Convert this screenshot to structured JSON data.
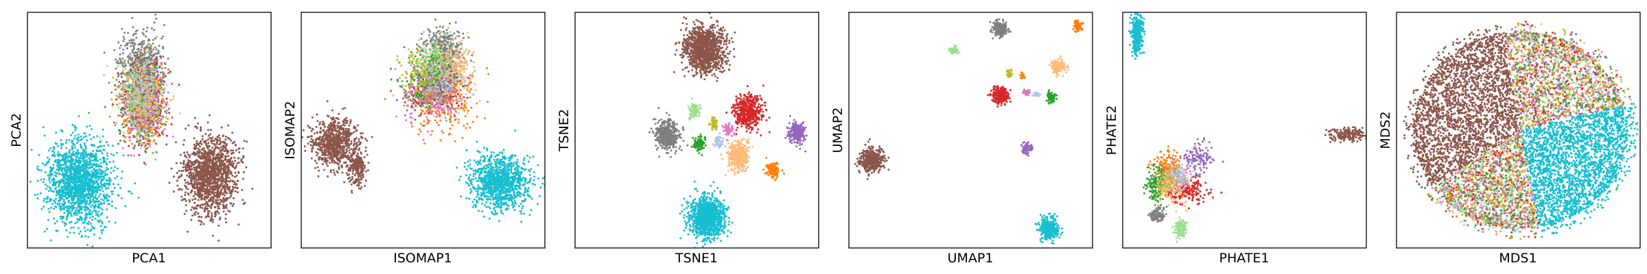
{
  "figure": {
    "panels": [
      {
        "id": "pca",
        "xlabel": "PCA1",
        "ylabel": "PCA2"
      },
      {
        "id": "isomap",
        "xlabel": "ISOMAP1",
        "ylabel": "ISOMAP2"
      },
      {
        "id": "tsne",
        "xlabel": "TSNE1",
        "ylabel": "TSNE2"
      },
      {
        "id": "umap",
        "xlabel": "UMAP1",
        "ylabel": "UMAP2"
      },
      {
        "id": "phate",
        "xlabel": "PHATE1",
        "ylabel": "PHATE2"
      },
      {
        "id": "mds",
        "xlabel": "MDS1",
        "ylabel": "MDS2"
      }
    ],
    "palette": {
      "orange": "#ff7f0e",
      "green": "#2ca02c",
      "red": "#d62728",
      "purple": "#9467bd",
      "brown": "#8c564b",
      "pink": "#e377c2",
      "gray": "#7f7f7f",
      "olive": "#bcbd22",
      "cyan": "#17becf",
      "lightgreen": "#98df8a",
      "lightorange": "#ffbb78",
      "lightblue": "#aec7e8",
      "blue": "#1f77b4"
    }
  },
  "chart_data": [
    {
      "type": "scatter",
      "xlabel": "PCA1",
      "ylabel": "PCA2",
      "xlim": [
        0,
        100
      ],
      "ylim": [
        0,
        100
      ],
      "ticks": "none",
      "grid": false,
      "clusters": [
        {
          "color": "cyan",
          "center": [
            21,
            28
          ],
          "spread": [
            6.5,
            9
          ],
          "n": 1600
        },
        {
          "color": "brown",
          "center": [
            75,
            31
          ],
          "spread": [
            5.5,
            8
          ],
          "n": 1400
        },
        {
          "color": "gray",
          "center": [
            47,
            75
          ],
          "spread": [
            4.5,
            8
          ],
          "n": 700
        },
        {
          "color": "red",
          "center": [
            48,
            61
          ],
          "spread": [
            4.5,
            8
          ],
          "n": 320
        },
        {
          "color": "orange",
          "center": [
            47,
            58
          ],
          "spread": [
            4.5,
            8
          ],
          "n": 200
        },
        {
          "color": "green",
          "center": [
            47,
            58
          ],
          "spread": [
            4.5,
            8
          ],
          "n": 200
        },
        {
          "color": "purple",
          "center": [
            48,
            60
          ],
          "spread": [
            4.5,
            8
          ],
          "n": 200
        },
        {
          "color": "pink",
          "center": [
            48,
            58
          ],
          "spread": [
            4.5,
            8
          ],
          "n": 140
        },
        {
          "color": "olive",
          "center": [
            47,
            62
          ],
          "spread": [
            4.5,
            8
          ],
          "n": 140
        },
        {
          "color": "lightgreen",
          "center": [
            46,
            66
          ],
          "spread": [
            4.5,
            8
          ],
          "n": 140
        },
        {
          "color": "lightorange",
          "center": [
            49,
            64
          ],
          "spread": [
            4.5,
            8
          ],
          "n": 140
        },
        {
          "color": "lightblue",
          "center": [
            47,
            64
          ],
          "spread": [
            4.5,
            8
          ],
          "n": 120
        }
      ]
    },
    {
      "type": "scatter",
      "xlabel": "ISOMAP1",
      "ylabel": "ISOMAP2",
      "xlim": [
        0,
        100
      ],
      "ylim": [
        0,
        100
      ],
      "ticks": "none",
      "grid": false,
      "clusters": [
        {
          "color": "brown",
          "center": [
            14,
            45
          ],
          "spread": [
            4.5,
            5
          ],
          "n": 800
        },
        {
          "color": "brown",
          "center": [
            23,
            34
          ],
          "spread": [
            2,
            4
          ],
          "n": 200
        },
        {
          "color": "cyan",
          "center": [
            82,
            28
          ],
          "spread": [
            6,
            5.5
          ],
          "n": 1100
        },
        {
          "color": "gray",
          "center": [
            58,
            83
          ],
          "spread": [
            4,
            5
          ],
          "n": 450
        },
        {
          "color": "lightgreen",
          "center": [
            55,
            78
          ],
          "spread": [
            4.5,
            6
          ],
          "n": 260
        },
        {
          "color": "lightorange",
          "center": [
            63,
            74
          ],
          "spread": [
            4,
            7
          ],
          "n": 260
        },
        {
          "color": "red",
          "center": [
            55,
            66
          ],
          "spread": [
            5,
            4
          ],
          "n": 260
        },
        {
          "color": "purple",
          "center": [
            53,
            67
          ],
          "spread": [
            5,
            4
          ],
          "n": 220
        },
        {
          "color": "orange",
          "center": [
            58,
            62
          ],
          "spread": [
            7,
            8
          ],
          "n": 220
        },
        {
          "color": "green",
          "center": [
            52,
            70
          ],
          "spread": [
            6,
            6
          ],
          "n": 180
        },
        {
          "color": "pink",
          "center": [
            54,
            64
          ],
          "spread": [
            6,
            6
          ],
          "n": 160
        },
        {
          "color": "olive",
          "center": [
            50,
            72
          ],
          "spread": [
            5,
            5
          ],
          "n": 140
        },
        {
          "color": "lightblue",
          "center": [
            58,
            70
          ],
          "spread": [
            5,
            5
          ],
          "n": 120
        }
      ]
    },
    {
      "type": "scatter",
      "xlabel": "TSNE1",
      "ylabel": "TSNE2",
      "xlim": [
        0,
        100
      ],
      "ylim": [
        0,
        100
      ],
      "ticks": "none",
      "grid": false,
      "clusters": [
        {
          "color": "brown",
          "center": [
            53,
            84
          ],
          "spread": [
            4.2,
            4.8
          ],
          "n": 1200
        },
        {
          "color": "cyan",
          "center": [
            54,
            13
          ],
          "spread": [
            3.6,
            4.3
          ],
          "n": 1100
        },
        {
          "color": "red",
          "center": [
            71,
            58
          ],
          "spread": [
            2.8,
            3.5
          ],
          "n": 500
        },
        {
          "color": "gray",
          "center": [
            38,
            48
          ],
          "spread": [
            2.5,
            3
          ],
          "n": 420
        },
        {
          "color": "lightorange",
          "center": [
            67,
            39
          ],
          "spread": [
            2.2,
            3
          ],
          "n": 360
        },
        {
          "color": "purple",
          "center": [
            91,
            49
          ],
          "spread": [
            1.8,
            2.2
          ],
          "n": 220
        },
        {
          "color": "orange",
          "center": [
            81,
            33
          ],
          "spread": [
            1.3,
            1.8
          ],
          "n": 140
        },
        {
          "color": "green",
          "center": [
            51,
            44
          ],
          "spread": [
            1.2,
            1.6
          ],
          "n": 120
        },
        {
          "color": "lightgreen",
          "center": [
            49,
            58
          ],
          "spread": [
            1.2,
            1.6
          ],
          "n": 90
        },
        {
          "color": "olive",
          "center": [
            57,
            53
          ],
          "spread": [
            0.8,
            1.2
          ],
          "n": 50
        },
        {
          "color": "pink",
          "center": [
            63,
            50
          ],
          "spread": [
            1,
            1.3
          ],
          "n": 60
        },
        {
          "color": "lightblue",
          "center": [
            59,
            45
          ],
          "spread": [
            1,
            1.3
          ],
          "n": 60
        }
      ]
    },
    {
      "type": "scatter",
      "xlabel": "UMAP1",
      "ylabel": "UMAP2",
      "xlim": [
        0,
        100
      ],
      "ylim": [
        0,
        100
      ],
      "ticks": "none",
      "grid": false,
      "clusters": [
        {
          "color": "gray",
          "center": [
            62,
            93
          ],
          "spread": [
            1.4,
            1.6
          ],
          "n": 250
        },
        {
          "color": "orange",
          "center": [
            94,
            94
          ],
          "spread": [
            0.8,
            1
          ],
          "n": 90
        },
        {
          "color": "lightgreen",
          "center": [
            43,
            84
          ],
          "spread": [
            0.9,
            0.7
          ],
          "n": 70
        },
        {
          "color": "lightorange",
          "center": [
            86,
            77
          ],
          "spread": [
            1.5,
            1.4
          ],
          "n": 160
        },
        {
          "color": "olive",
          "center": [
            66,
            74
          ],
          "spread": [
            0.6,
            0.8
          ],
          "n": 40
        },
        {
          "color": "orange",
          "center": [
            71,
            73
          ],
          "spread": [
            0.5,
            0.6
          ],
          "n": 25
        },
        {
          "color": "red",
          "center": [
            62,
            65
          ],
          "spread": [
            1.7,
            1.6
          ],
          "n": 230
        },
        {
          "color": "pink",
          "center": [
            73,
            66
          ],
          "spread": [
            0.7,
            0.6
          ],
          "n": 35
        },
        {
          "color": "lightblue",
          "center": [
            77,
            65
          ],
          "spread": [
            0.6,
            0.5
          ],
          "n": 30
        },
        {
          "color": "green",
          "center": [
            83,
            64
          ],
          "spread": [
            0.8,
            1.2
          ],
          "n": 70
        },
        {
          "color": "purple",
          "center": [
            73,
            42
          ],
          "spread": [
            1,
            1.1
          ],
          "n": 70
        },
        {
          "color": "brown",
          "center": [
            9,
            37
          ],
          "spread": [
            2.3,
            2.5
          ],
          "n": 450
        },
        {
          "color": "cyan",
          "center": [
            82,
            8
          ],
          "spread": [
            1.9,
            2.2
          ],
          "n": 380
        }
      ]
    },
    {
      "type": "scatter",
      "xlabel": "PHATE1",
      "ylabel": "PHATE2",
      "xlim": [
        0,
        100
      ],
      "ylim": [
        0,
        100
      ],
      "ticks": "none",
      "grid": false,
      "clusters": [
        {
          "color": "cyan",
          "center": [
            6,
            91
          ],
          "spread": [
            1.2,
            5
          ],
          "n": 300
        },
        {
          "color": "brown",
          "center": [
            92,
            48
          ],
          "spread": [
            3.5,
            1.4
          ],
          "n": 200
        },
        {
          "color": "orange",
          "center": [
            18,
            35
          ],
          "spread": [
            3,
            3
          ],
          "n": 150
        },
        {
          "color": "green",
          "center": [
            14,
            27
          ],
          "spread": [
            2,
            3.5
          ],
          "n": 180
        },
        {
          "color": "red",
          "center": [
            26,
            24
          ],
          "spread": [
            4.5,
            2.5
          ],
          "n": 180
        },
        {
          "color": "purple",
          "center": [
            31,
            39
          ],
          "spread": [
            3,
            3.5
          ],
          "n": 120
        },
        {
          "color": "lightorange",
          "center": [
            20,
            26
          ],
          "spread": [
            3,
            4
          ],
          "n": 150
        },
        {
          "color": "lightgreen",
          "center": [
            24,
            8
          ],
          "spread": [
            1.3,
            1.8
          ],
          "n": 110
        },
        {
          "color": "gray",
          "center": [
            14,
            14
          ],
          "spread": [
            1.4,
            1.6
          ],
          "n": 110
        },
        {
          "color": "pink",
          "center": [
            22,
            30
          ],
          "spread": [
            3,
            3
          ],
          "n": 80
        },
        {
          "color": "olive",
          "center": [
            19,
            29
          ],
          "spread": [
            2.5,
            3
          ],
          "n": 70
        },
        {
          "color": "lightblue",
          "center": [
            24,
            31
          ],
          "spread": [
            3,
            3
          ],
          "n": 70
        }
      ]
    },
    {
      "type": "scatter",
      "xlabel": "MDS1",
      "ylabel": "MDS2",
      "xlim": [
        0,
        100
      ],
      "ylim": [
        0,
        100
      ],
      "ticks": "none",
      "grid": false,
      "disk": {
        "center": [
          51,
          50
        ],
        "radius_x": 44,
        "radius_y": 42
      },
      "sectors": [
        {
          "color": "brown",
          "angle_range": [
            100,
            215
          ],
          "n": 2600
        },
        {
          "color": "cyan",
          "angle_range": [
            -80,
            15
          ],
          "n": 2400
        },
        {
          "mixed": [
            "gray",
            "red",
            "orange",
            "green",
            "purple",
            "pink",
            "olive",
            "lightgreen",
            "lightorange",
            "lightblue"
          ],
          "angle_range": [
            15,
            100
          ],
          "n": 2000
        },
        {
          "mixed": [
            "red",
            "orange",
            "green",
            "purple",
            "pink",
            "olive",
            "gray",
            "lightgreen",
            "lightorange",
            "lightblue"
          ],
          "angle_range": [
            215,
            280
          ],
          "n": 1800
        }
      ]
    }
  ]
}
